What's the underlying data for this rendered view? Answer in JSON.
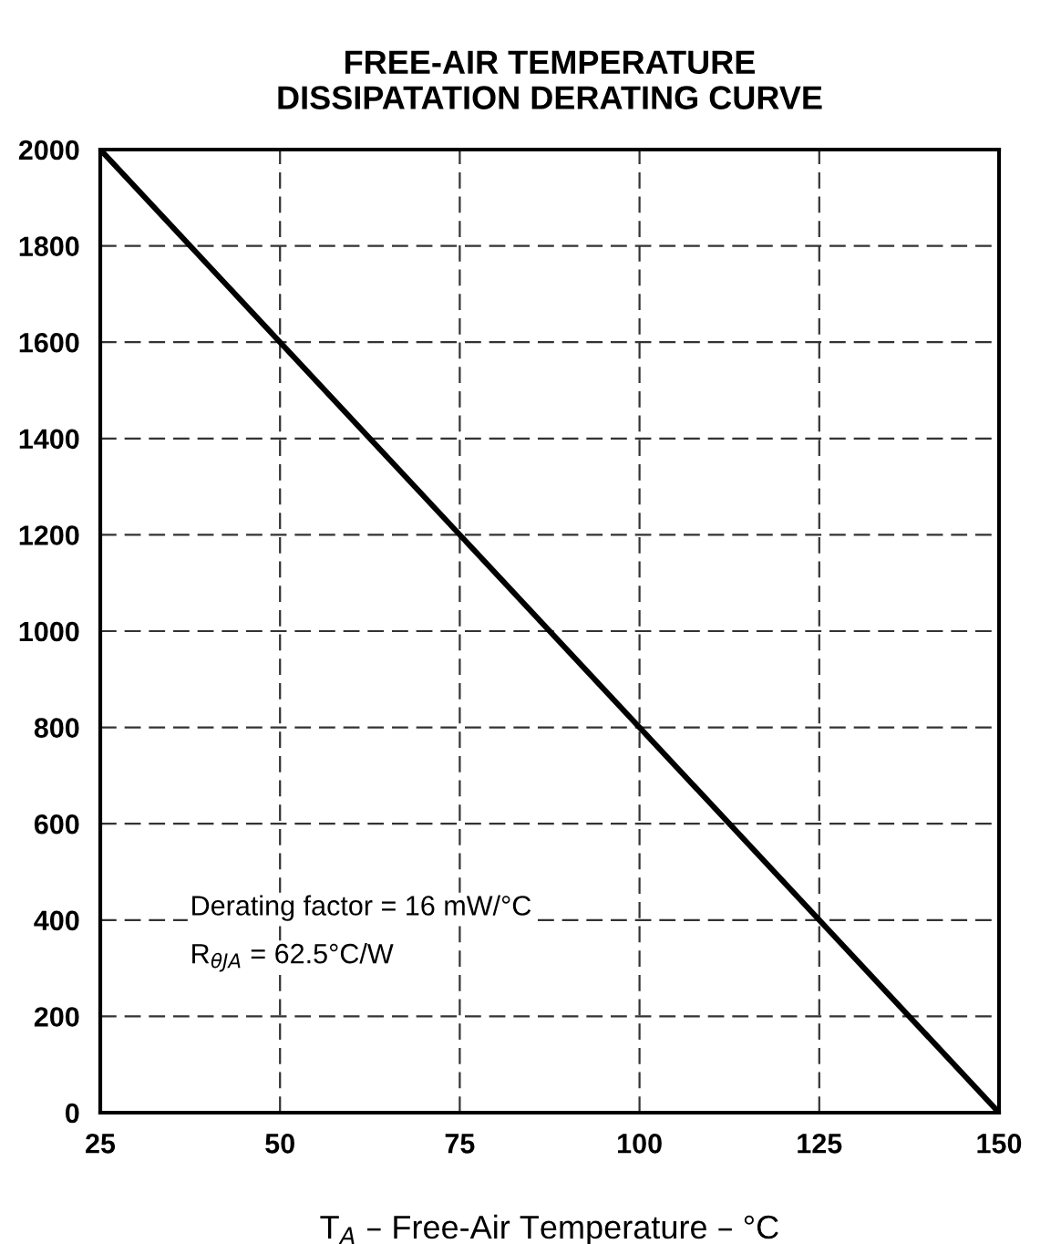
{
  "chart_data": {
    "type": "line",
    "title": "FREE-AIR TEMPERATURE\nDISSIPATATION DERATING CURVE",
    "xlabel": "T$_{A}$ – Free-Air Temperature – °C",
    "x": [
      25,
      150
    ],
    "series": [
      {
        "color": "#000000",
        "values": [
          2000,
          0
        ]
      }
    ],
    "xlim": [
      25,
      150
    ],
    "xticks": [
      25,
      50,
      75,
      100,
      125,
      150
    ],
    "ylim": [
      0,
      2000
    ],
    "yticks": [
      0,
      200,
      400,
      600,
      800,
      1000,
      1200,
      1400,
      1600,
      1800,
      2000
    ],
    "grid": true,
    "line_style": "solid",
    "marker": "none",
    "annotations": [
      "Derating factor = 16 mW/°C",
      "R$_{θJA}$ = 62.5°C/W"
    ]
  }
}
